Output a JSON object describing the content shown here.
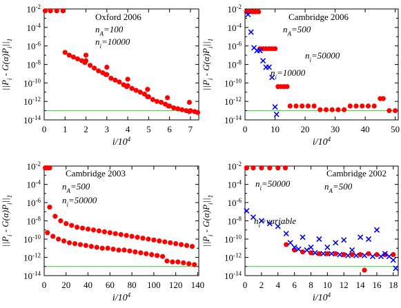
{
  "chart_data": [
    {
      "type": "scatter",
      "title": "Oxford 2006",
      "annotations": [
        "n_A=100",
        "n_i=10000"
      ],
      "xlabel": "i/10^4",
      "ylabel": "||P_i - G(α)P_i||_1",
      "xticks": [
        "0",
        "1",
        "2",
        "3",
        "4",
        "5",
        "6",
        "7"
      ],
      "yticks": [
        "10^-2",
        "10^-4",
        "10^-6",
        "10^-8",
        "10^-10",
        "10^-12",
        "10^-14"
      ],
      "xlim": [
        0,
        7.4
      ],
      "ylim_log10": [
        -14,
        -2
      ],
      "green_line_log10": -13,
      "series": [
        {
          "color": "#ff0000",
          "marker": "circle",
          "x": [
            0.05,
            0.3,
            0.6,
            0.9,
            1.0,
            1.2,
            1.4,
            1.6,
            1.8,
            1.95,
            2.0,
            2.2,
            2.4,
            2.6,
            2.8,
            2.95,
            3.0,
            3.2,
            3.4,
            3.6,
            3.8,
            3.95,
            4.0,
            4.2,
            4.4,
            4.6,
            4.8,
            4.95,
            5.0,
            5.2,
            5.4,
            5.6,
            5.8,
            5.95,
            6.0,
            6.2,
            6.4,
            6.6,
            6.8,
            6.95,
            7.0,
            7.2,
            7.35
          ],
          "y_log10": [
            -2.2,
            -2.2,
            -2.2,
            -2.2,
            -6.7,
            -7.0,
            -7.2,
            -7.4,
            -7.6,
            -7.8,
            -7.6,
            -8.1,
            -8.4,
            -8.7,
            -8.9,
            -9.1,
            -9.1,
            -9.5,
            -9.7,
            -9.9,
            -10.2,
            -10.4,
            -10.3,
            -10.6,
            -10.8,
            -11.0,
            -11.2,
            -11.5,
            -11.5,
            -11.8,
            -12.0,
            -12.1,
            -12.3,
            -12.5,
            -12.5,
            -12.7,
            -12.8,
            -12.9,
            -13.0,
            -13.1,
            -13.0,
            -13.1,
            -13.2
          ]
        },
        {
          "color": "#ff0000",
          "marker": "circle",
          "x": [
            2.0,
            3.0,
            4.0,
            4.95,
            5.9,
            6.95
          ],
          "y_log10": [
            -7.0,
            -8.3,
            -9.6,
            -10.7,
            -11.6,
            -12.1
          ]
        }
      ]
    },
    {
      "type": "scatter",
      "title": "Cambridge 2006",
      "annotations": [
        "n_A=500",
        "n_i=50000",
        "n_i=10000"
      ],
      "xlabel": "i/10^4",
      "ylabel": "||P_i - G(α)P_i||_1",
      "xticks": [
        "0",
        "10",
        "20",
        "30",
        "40",
        "50"
      ],
      "yticks": [
        "10^-2",
        "10^-4",
        "10^-6",
        "10^-8",
        "10^-10",
        "10^-12",
        "10^-14"
      ],
      "xlim": [
        0,
        51
      ],
      "ylim_log10": [
        -14,
        -2
      ],
      "green_line_log10": -13,
      "series": [
        {
          "color": "#ff0000",
          "marker": "circle",
          "x": [
            0.5,
            1.5,
            2.5,
            3.5,
            4.5,
            5.0,
            6,
            7,
            8,
            9,
            10.0,
            11,
            12,
            13,
            14,
            15.0,
            17,
            19,
            21,
            23,
            25.0,
            27,
            29,
            31,
            33,
            35.0,
            37,
            39,
            41,
            43,
            45.0,
            46,
            48,
            50
          ],
          "y_log10": [
            -2.3,
            -2.3,
            -2.3,
            -2.3,
            -2.3,
            -6.3,
            -6.3,
            -6.3,
            -6.3,
            -6.3,
            -6.3,
            -10.4,
            -10.4,
            -10.4,
            -10.4,
            -12.5,
            -12.5,
            -12.5,
            -12.5,
            -12.5,
            -12.9,
            -12.9,
            -12.9,
            -12.9,
            -12.9,
            -12.5,
            -12.5,
            -12.5,
            -12.5,
            -12.5,
            -11.7,
            -11.7,
            -13.0,
            -13.0
          ]
        },
        {
          "color": "#0000ff",
          "marker": "x",
          "x": [
            1,
            2,
            3,
            4,
            5,
            6,
            7,
            8,
            9,
            10,
            10.5
          ],
          "y_log10": [
            -2.6,
            -4.5,
            -6.2,
            -6.5,
            -6.5,
            -7.6,
            -8.3,
            -8.3,
            -9.4,
            -12.6,
            -13.4
          ]
        }
      ]
    },
    {
      "type": "scatter",
      "title": "Cambridge 2003",
      "annotations": [
        "n_A=500",
        "n_i=50000"
      ],
      "xlabel": "i/10^4",
      "ylabel": "||P_i - G(α)P_i||_1",
      "xticks": [
        "0",
        "20",
        "40",
        "60",
        "80",
        "100",
        "120",
        "140"
      ],
      "yticks": [
        "10^-2",
        "10^-4",
        "10^-6",
        "10^-8",
        "10^-10",
        "10^-12",
        "10^-14"
      ],
      "xlim": [
        0,
        141
      ],
      "ylim_log10": [
        -14,
        -2
      ],
      "green_line_log10": -13,
      "series": [
        {
          "color": "#ff0000",
          "marker": "circle",
          "x": [
            1,
            3,
            5,
            5,
            10,
            15,
            20,
            25,
            30,
            35,
            40,
            45,
            50,
            55,
            60,
            65,
            70,
            75,
            80,
            85,
            90,
            95,
            100,
            105,
            110,
            115,
            120,
            125,
            130,
            135
          ],
          "y_log10": [
            -2.2,
            -2.2,
            -2.2,
            -6.5,
            -7.5,
            -8.0,
            -8.3,
            -8.5,
            -8.7,
            -8.8,
            -8.9,
            -9.0,
            -9.1,
            -9.2,
            -9.3,
            -9.4,
            -9.5,
            -9.6,
            -9.7,
            -9.8,
            -9.9,
            -10.0,
            -10.1,
            -10.2,
            -10.3,
            -10.4,
            -10.5,
            -10.6,
            -10.7,
            -10.8
          ]
        },
        {
          "color": "#ff0000",
          "marker": "circle",
          "x": [
            3,
            8,
            13,
            18,
            23,
            28,
            33,
            38,
            43,
            48,
            53,
            58,
            63,
            68,
            73,
            78,
            83,
            88,
            93,
            98,
            103,
            108,
            112,
            117,
            122,
            127,
            132,
            137
          ],
          "y_log10": [
            -9.3,
            -9.7,
            -10.0,
            -10.2,
            -10.4,
            -10.5,
            -10.6,
            -10.7,
            -10.8,
            -10.9,
            -11.0,
            -11.0,
            -11.1,
            -11.2,
            -11.2,
            -11.3,
            -11.4,
            -11.5,
            -11.6,
            -11.7,
            -11.8,
            -11.9,
            -12.4,
            -12.5,
            -12.5,
            -12.6,
            -12.7,
            -12.8
          ]
        }
      ]
    },
    {
      "type": "scatter",
      "title": "Cambridge 2002",
      "annotations": [
        "n_i=50000",
        "n_A=500",
        "n_i=variable"
      ],
      "xlabel": "i/10^4",
      "ylabel": "||P_i - G(α)P_i||_1",
      "xticks": [
        "0",
        "2",
        "4",
        "6",
        "8",
        "10",
        "12",
        "14",
        "16",
        "18"
      ],
      "yticks": [
        "10^-2",
        "10^-4",
        "10^-6",
        "10^-8",
        "10^-10",
        "10^-12",
        "10^-14"
      ],
      "xlim": [
        0,
        18.6
      ],
      "ylim_log10": [
        -14,
        -2
      ],
      "green_line_log10": -13,
      "series": [
        {
          "color": "#ff0000",
          "marker": "circle",
          "x": [
            0.2,
            1,
            2,
            3,
            4,
            4.9,
            5,
            6,
            7,
            8,
            9,
            10,
            11,
            12,
            13,
            14,
            14.5,
            15,
            16,
            17,
            18
          ],
          "y_log10": [
            -2.2,
            -2.2,
            -2.2,
            -2.2,
            -2.2,
            -2.2,
            -10.6,
            -11.2,
            -11.4,
            -11.5,
            -11.6,
            -11.6,
            -11.6,
            -11.7,
            -11.7,
            -11.7,
            -13.4,
            -11.6,
            -11.7,
            -11.7,
            -11.7
          ]
        },
        {
          "color": "#0000ff",
          "marker": "x",
          "x": [
            0.2,
            1,
            2,
            3,
            4,
            5,
            5.5,
            6,
            6.5,
            7,
            7.5,
            8,
            8.5,
            9,
            9.5,
            10,
            10.5,
            11,
            11.5,
            12,
            12.5,
            13,
            13.5,
            14,
            14.5,
            15,
            15.5,
            16,
            16.5,
            17,
            17.5,
            18,
            18.3
          ],
          "y_log10": [
            -6.9,
            -7.6,
            -8.0,
            -8.3,
            -8.6,
            -9.4,
            -10.4,
            -10.9,
            -11.1,
            -9.8,
            -11.2,
            -10.9,
            -11.5,
            -10.0,
            -11.6,
            -10.9,
            -11.6,
            -10.4,
            -11.7,
            -10.1,
            -11.8,
            -11.2,
            -11.8,
            -9.8,
            -11.8,
            -10.0,
            -11.9,
            -9.0,
            -11.9,
            -11.6,
            -11.9,
            -12.3,
            -13.2
          ]
        }
      ]
    }
  ]
}
